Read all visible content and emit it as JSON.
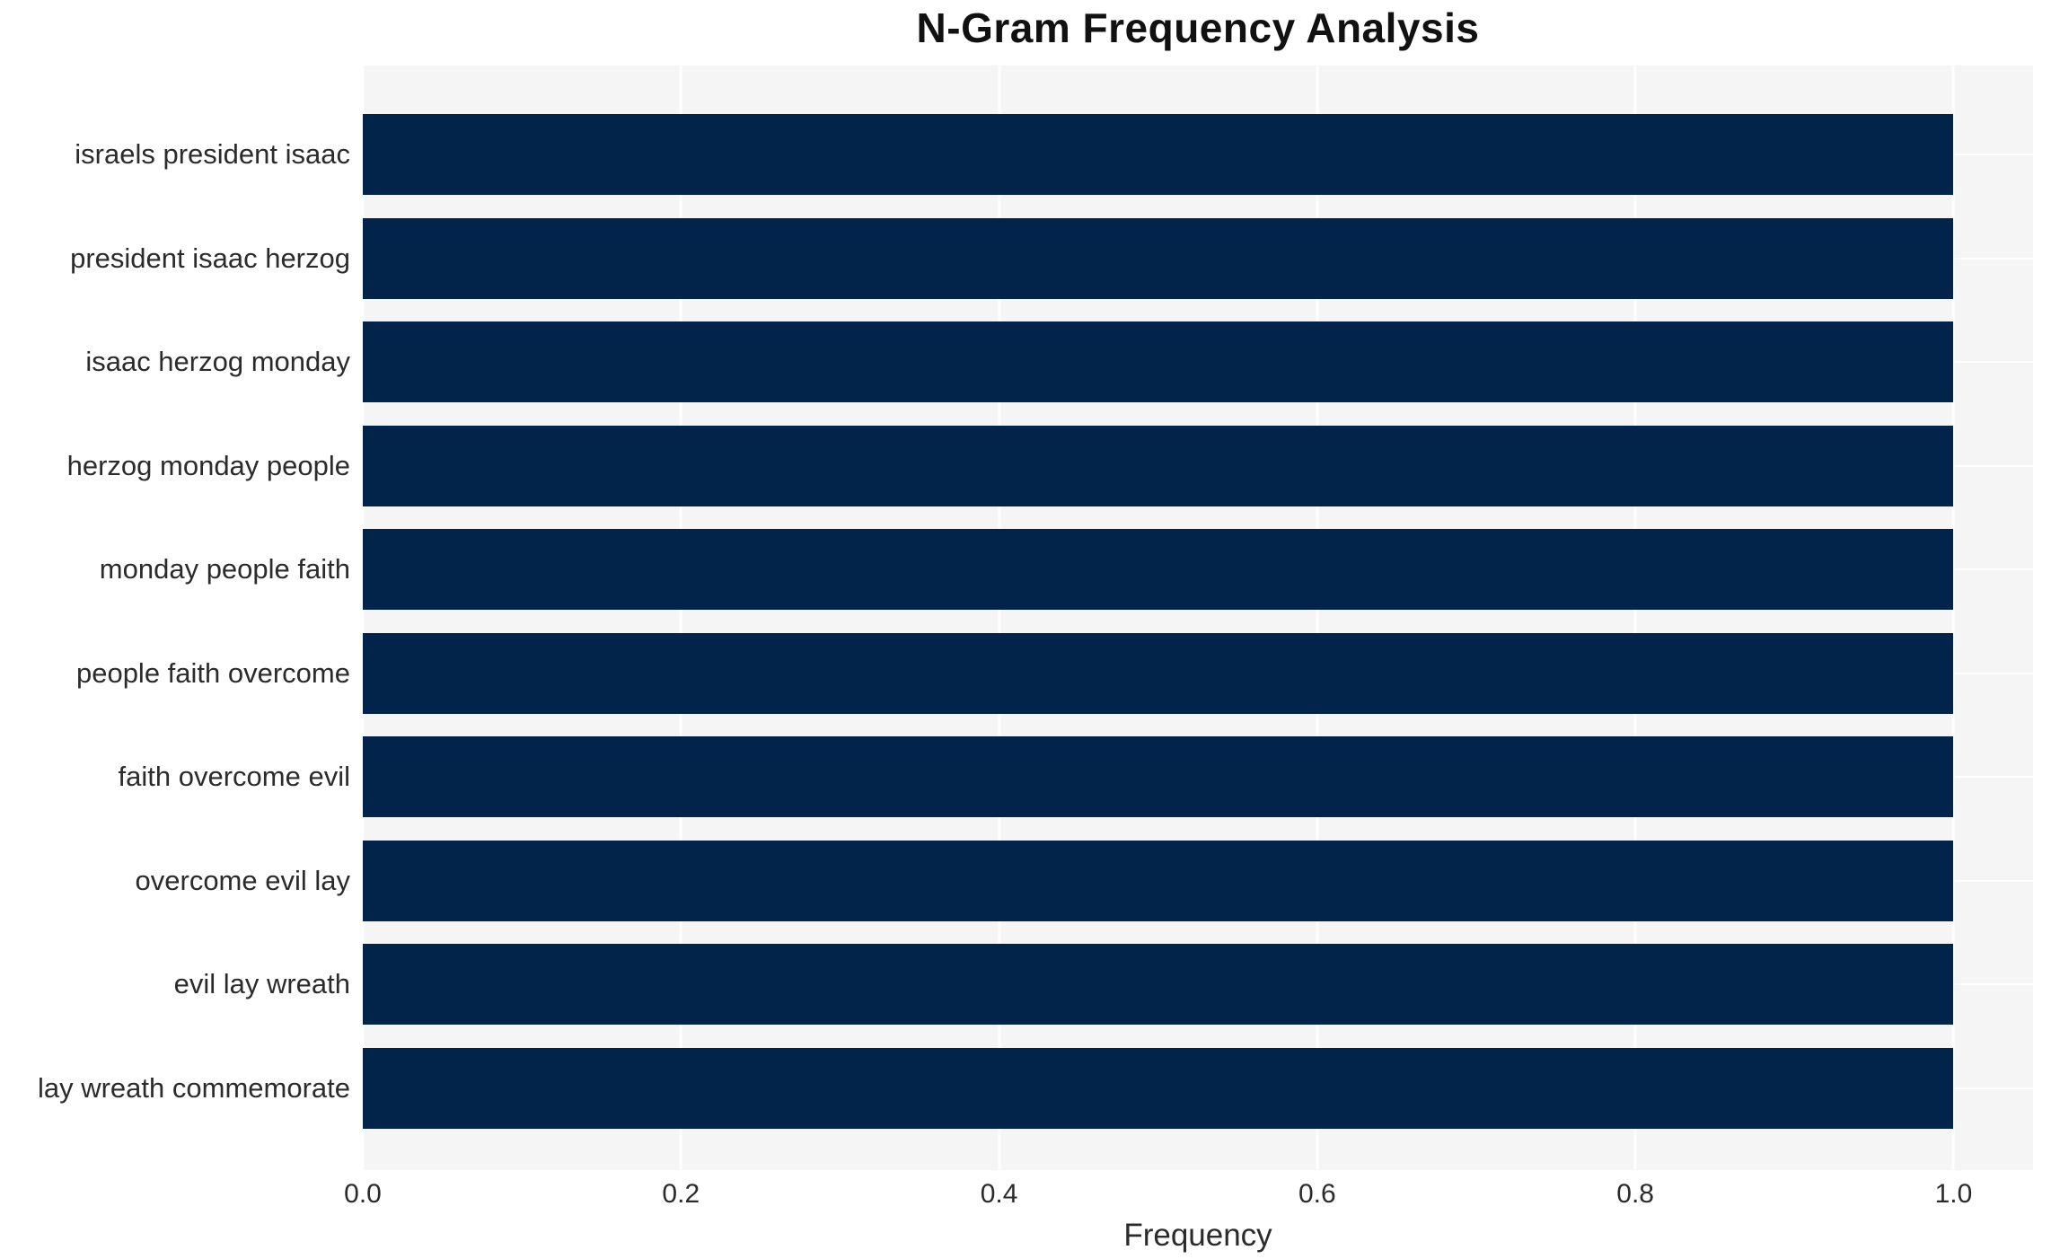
{
  "chart_data": {
    "type": "bar",
    "orientation": "horizontal",
    "title": "N-Gram Frequency Analysis",
    "xlabel": "Frequency",
    "ylabel": "",
    "categories": [
      "israels president isaac",
      "president isaac herzog",
      "isaac herzog monday",
      "herzog monday people",
      "monday people faith",
      "people faith overcome",
      "faith overcome evil",
      "overcome evil lay",
      "evil lay wreath",
      "lay wreath commemorate"
    ],
    "values": [
      1.0,
      1.0,
      1.0,
      1.0,
      1.0,
      1.0,
      1.0,
      1.0,
      1.0,
      1.0
    ],
    "xlim": [
      0.0,
      1.05
    ],
    "xticks": [
      0.0,
      0.2,
      0.4,
      0.6,
      0.8,
      1.0
    ],
    "xtick_labels": [
      "0.0",
      "0.2",
      "0.4",
      "0.6",
      "0.8",
      "1.0"
    ],
    "grid": true,
    "legend": false,
    "colors": {
      "bar": "#02234a",
      "plot_background": "#f5f5f6",
      "grid": "#ffffff",
      "text": "#2b2b2b",
      "title_text": "#111111"
    }
  }
}
